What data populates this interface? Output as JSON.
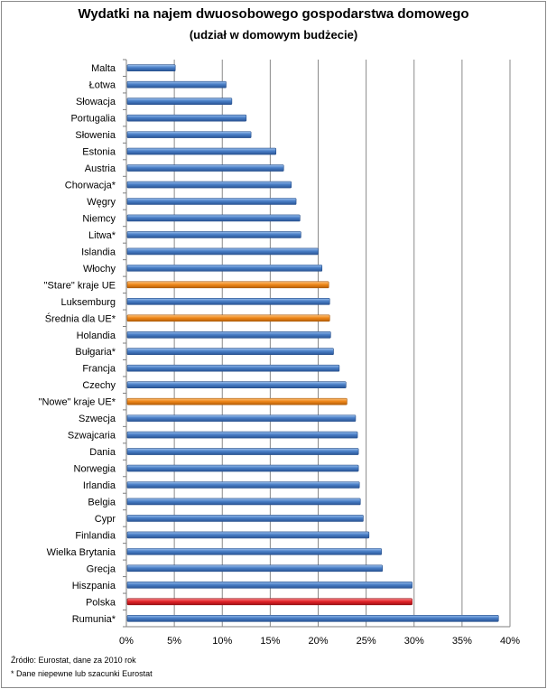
{
  "chart_data": {
    "type": "bar",
    "orientation": "horizontal",
    "title": "Wydatki na najem dwuosobowego gospodarstwa domowego",
    "subtitle": "(udział w domowym budżecie)",
    "categories": [
      "Malta",
      "Łotwa",
      "Słowacja",
      "Portugalia",
      "Słowenia",
      "Estonia",
      "Austria",
      "Chorwacja*",
      "Węgry",
      "Niemcy",
      "Litwa*",
      "Islandia",
      "Włochy",
      "\"Stare\" kraje UE",
      "Luksemburg",
      "Średnia dla UE*",
      "Holandia",
      "Bułgaria*",
      "Francja",
      "Czechy",
      "\"Nowe\" kraje UE*",
      "Szwecja",
      "Szwajcaria",
      "Dania",
      "Norwegia",
      "Irlandia",
      "Belgia",
      "Cypr",
      "Finlandia",
      "Wielka Brytania",
      "Grecja",
      "Hiszpania",
      "Polska",
      "Rumunia*"
    ],
    "values": [
      5.1,
      10.4,
      11.0,
      12.5,
      13.0,
      15.6,
      16.4,
      17.2,
      17.7,
      18.1,
      18.2,
      20.0,
      20.4,
      21.1,
      21.2,
      21.2,
      21.3,
      21.6,
      22.2,
      22.9,
      23.0,
      23.9,
      24.1,
      24.2,
      24.2,
      24.3,
      24.4,
      24.7,
      25.3,
      26.6,
      26.7,
      29.8,
      29.8,
      38.8
    ],
    "highlight": {
      "\"Stare\" kraje UE": "orange",
      "Średnia dla UE*": "orange",
      "\"Nowe\" kraje UE*": "orange",
      "Polska": "red"
    },
    "xlim": [
      0,
      40
    ],
    "xticks": [
      "0%",
      "5%",
      "10%",
      "15%",
      "20%",
      "25%",
      "30%",
      "35%",
      "40%"
    ],
    "grid": true,
    "colors": {
      "default": "#4a7fc7",
      "orange": "#f0891b",
      "red": "#e5242a"
    }
  },
  "footnotes": {
    "source": "Źródło: Eurostat, dane za 2010 rok",
    "note": "* Dane niepewne lub szacunki Eurostat"
  }
}
